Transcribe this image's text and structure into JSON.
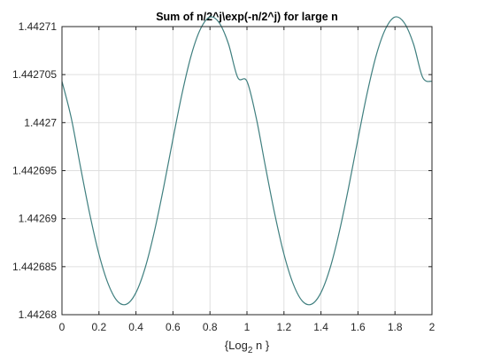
{
  "chart_data": {
    "type": "line",
    "title": "Sum of n/2^j\\exp(-n/2^j) for large n",
    "xlabel_prefix": "{Log",
    "xlabel_sub": "2",
    "xlabel_suffix": " n }",
    "ylabel": "",
    "xlim": [
      0,
      2
    ],
    "ylim": [
      1.44268,
      1.44271
    ],
    "grid": true,
    "x_ticks": [
      0,
      0.2,
      0.4,
      0.6,
      0.8,
      1,
      1.2,
      1.4,
      1.6,
      1.8,
      2
    ],
    "x_tick_labels": [
      "0",
      "0.2",
      "0.4",
      "0.6",
      "0.8",
      "1",
      "1.2",
      "1.4",
      "1.6",
      "1.8",
      "2"
    ],
    "y_ticks": [
      1.44268,
      1.442685,
      1.44269,
      1.442695,
      1.4427,
      1.442705,
      1.44271
    ],
    "y_tick_labels": [
      "1.44268",
      "1.442685",
      "1.44269",
      "1.442695",
      "1.4427",
      "1.442705",
      "1.44271"
    ],
    "series": [
      {
        "color": "#3f7f7f",
        "x": [
          0,
          0.05,
          0.1,
          0.15,
          0.2,
          0.25,
          0.3,
          0.35,
          0.4,
          0.45,
          0.5,
          0.55,
          0.6,
          0.65,
          0.7,
          0.75,
          0.8,
          0.85,
          0.9,
          0.95,
          1,
          1.05,
          1.1,
          1.15,
          1.2,
          1.25,
          1.3,
          1.35,
          1.4,
          1.45,
          1.5,
          1.55,
          1.6,
          1.65,
          1.7,
          1.75,
          1.8,
          1.85,
          1.9,
          1.95,
          2
        ],
        "y": [
          1.4427043,
          1.4427005,
          1.4426954,
          1.4426905,
          1.4426863,
          1.4426832,
          1.4426814,
          1.4426811,
          1.4426823,
          1.4426849,
          1.4426887,
          1.4426933,
          1.4426983,
          1.4427031,
          1.4427071,
          1.4427098,
          1.442711,
          1.4427104,
          1.4427082,
          1.4427047,
          1.4427043,
          1.4427005,
          1.4426954,
          1.4426905,
          1.4426863,
          1.4426832,
          1.4426814,
          1.4426811,
          1.4426823,
          1.4426849,
          1.4426887,
          1.4426933,
          1.4426983,
          1.4427031,
          1.4427071,
          1.4427098,
          1.442711,
          1.4427104,
          1.4427082,
          1.4427047,
          1.4427043
        ]
      }
    ]
  }
}
